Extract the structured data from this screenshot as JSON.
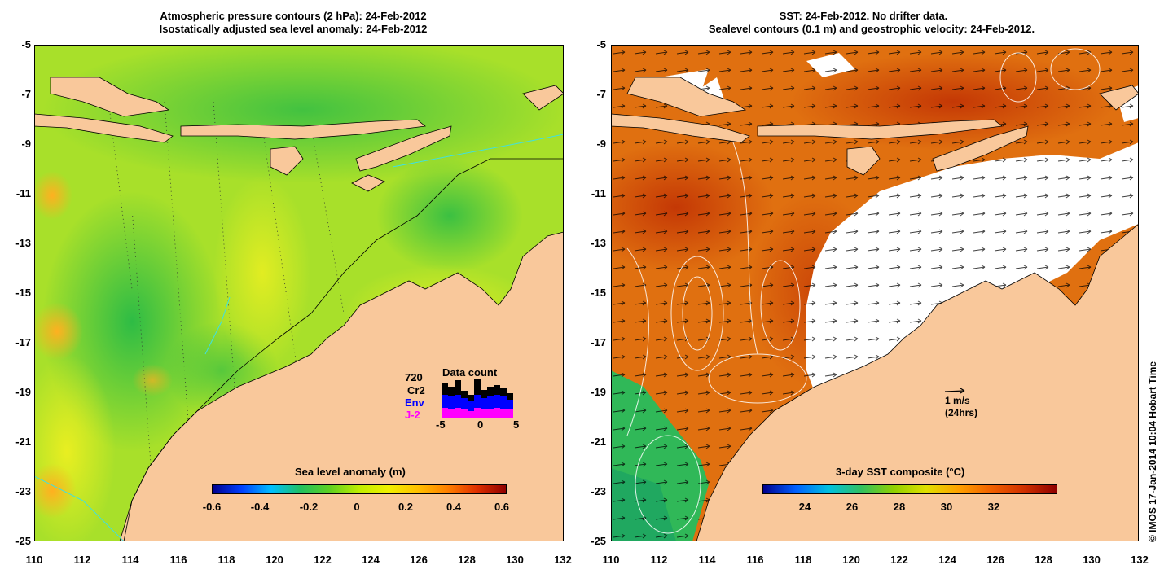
{
  "left_panel": {
    "title_line1": "Atmospheric pressure contours (2 hPa): 24-Feb-2012",
    "title_line2": "Isostatically adjusted sea level anomaly: 24-Feb-2012",
    "colorbar_label": "Sea level anomaly (m)",
    "colorbar_ticks": [
      "-0.6",
      "-0.4",
      "-0.2",
      "0",
      "0.2",
      "0.4",
      "0.6"
    ],
    "data_count": {
      "title": "Data count",
      "total": "720",
      "missions": [
        {
          "name": "Cr2",
          "color": "#000000"
        },
        {
          "name": "Env",
          "color": "#0000ff"
        },
        {
          "name": "J-2",
          "color": "#ff00ff"
        }
      ],
      "xticks": [
        "-5",
        "0",
        "5"
      ]
    }
  },
  "right_panel": {
    "title_line1": "SST: 24-Feb-2012. No drifter data.",
    "title_line2": "Sealevel contours (0.1 m) and geostrophic velocity: 24-Feb-2012.",
    "colorbar_label": "3-day SST composite (°C)",
    "colorbar_ticks": [
      "24",
      "26",
      "28",
      "30",
      "32"
    ],
    "velocity_scale": "1 m/s",
    "velocity_scale_note": "(24hrs)"
  },
  "axes": {
    "lat_ticks": [
      "-5",
      "-7",
      "-9",
      "-11",
      "-13",
      "-15",
      "-17",
      "-19",
      "-21",
      "-23",
      "-25"
    ],
    "lon_ticks": [
      "110",
      "112",
      "114",
      "116",
      "118",
      "120",
      "122",
      "124",
      "126",
      "128",
      "130",
      "132"
    ]
  },
  "copyright": "© IMOS 17-Jan-2014 10:04 Hobart Time",
  "colors": {
    "land": "#f9c89b",
    "slaColormap": [
      "#00008f",
      "#0040ff",
      "#00bfff",
      "#20c060",
      "#60d020",
      "#c0ee00",
      "#f0f000",
      "#ffc000",
      "#ff8000",
      "#e03000",
      "#8f0000"
    ],
    "sstColormap": [
      "#00008f",
      "#0060ff",
      "#00c0e0",
      "#30c060",
      "#90d000",
      "#e0e000",
      "#ffa000",
      "#f06000",
      "#d03000",
      "#8f0000"
    ]
  }
}
